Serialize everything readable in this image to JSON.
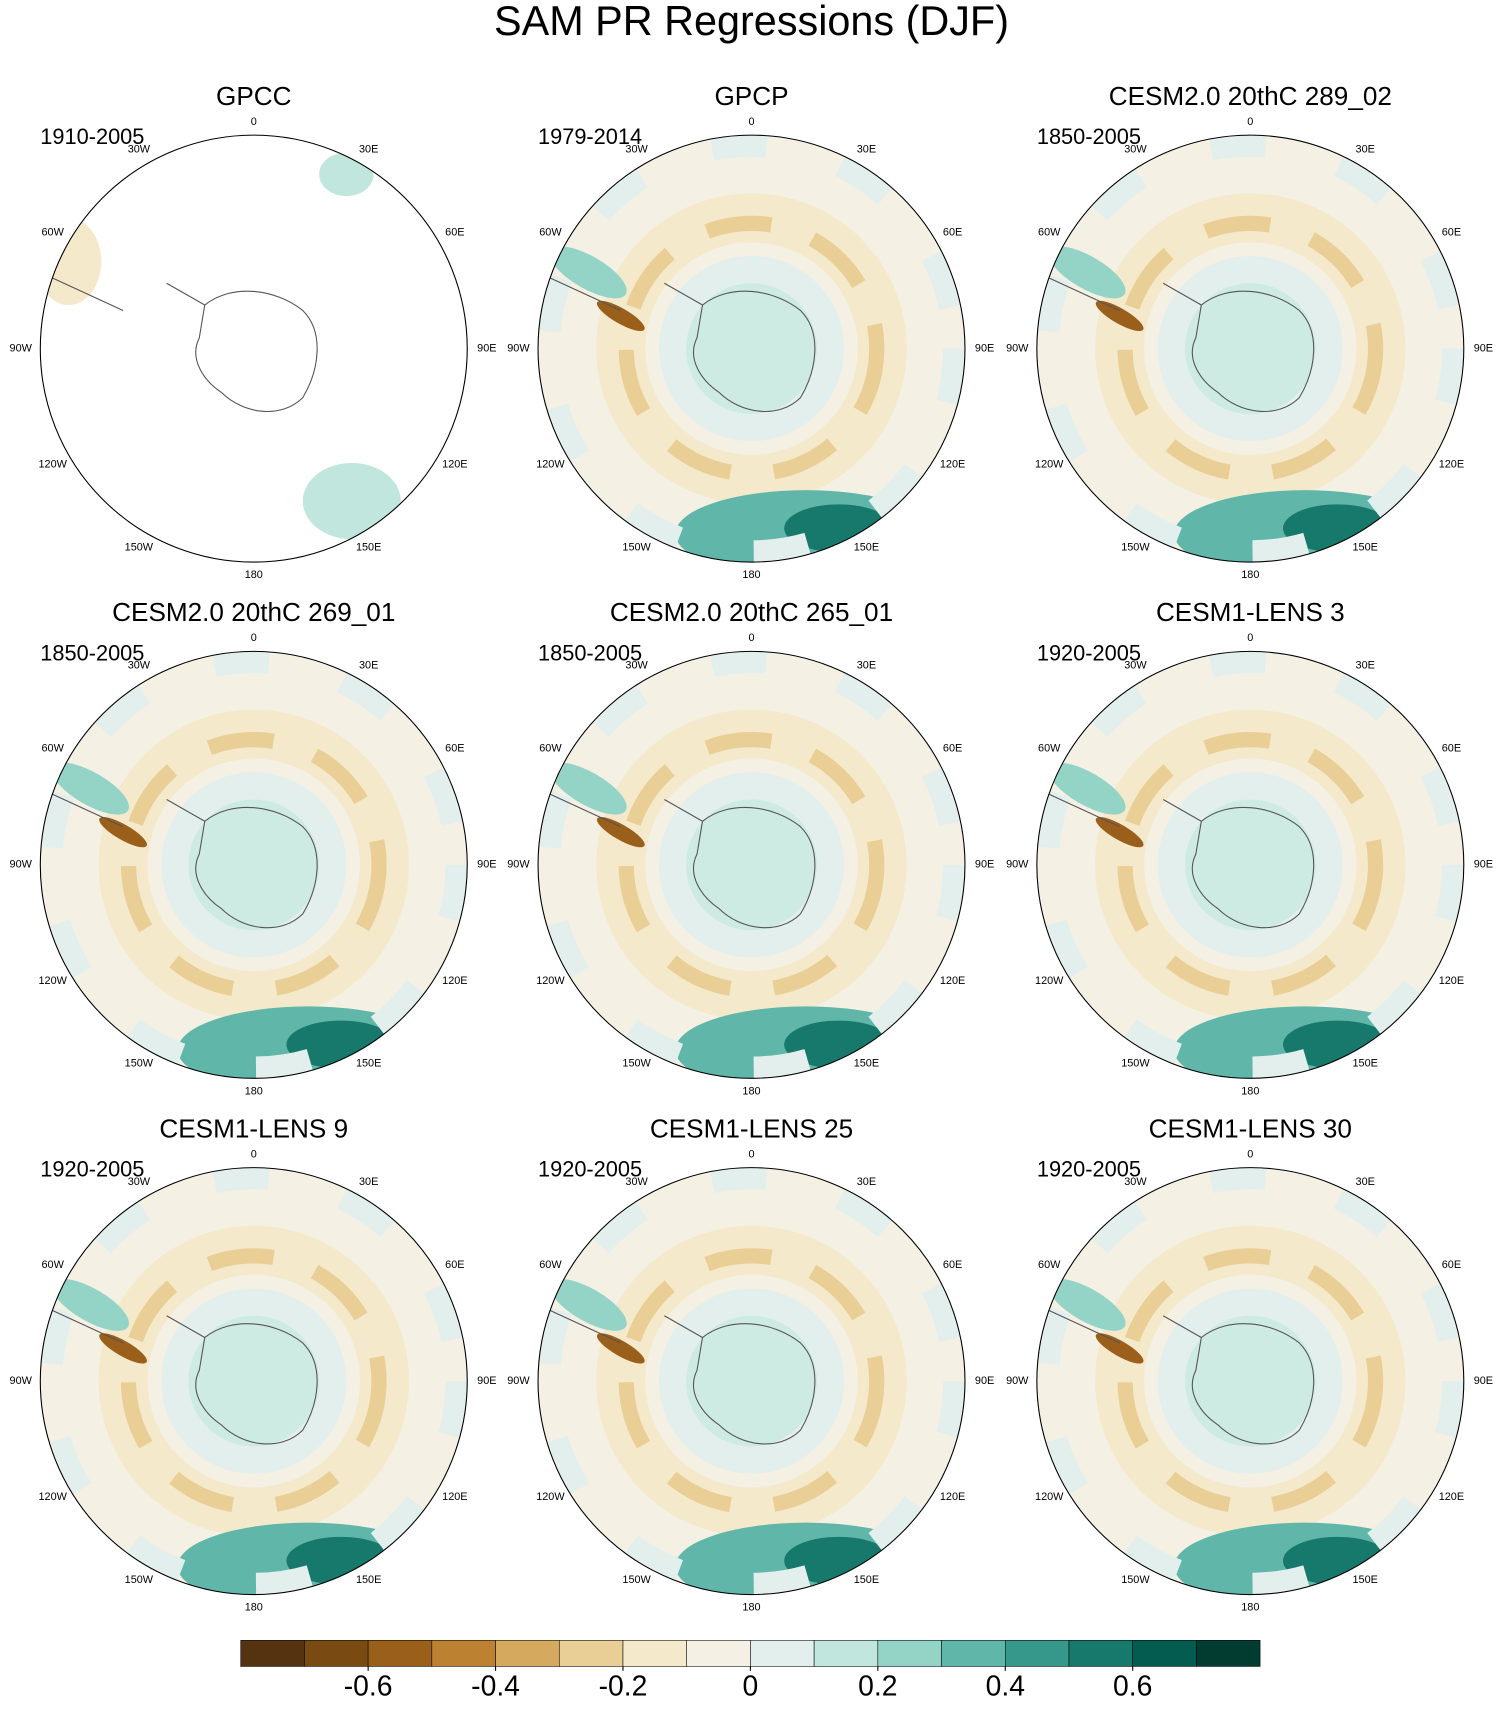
{
  "title": "SAM PR Regressions (DJF)",
  "panels": [
    {
      "title": "GPCC",
      "period": "1910-2005"
    },
    {
      "title": "GPCP",
      "period": "1979-2014"
    },
    {
      "title": "CESM2.0 20thC 289_02",
      "period": "1850-2005"
    },
    {
      "title": "CESM2.0 20thC 269_01",
      "period": "1850-2005"
    },
    {
      "title": "CESM2.0 20thC 265_01",
      "period": "1850-2005"
    },
    {
      "title": "CESM1-LENS 3",
      "period": "1920-2005"
    },
    {
      "title": "CESM1-LENS 9",
      "period": "1920-2005"
    },
    {
      "title": "CESM1-LENS 25",
      "period": "1920-2005"
    },
    {
      "title": "CESM1-LENS 30",
      "period": "1920-2005"
    }
  ],
  "longitude_labels": [
    "0",
    "30E",
    "60E",
    "90E",
    "120E",
    "150E",
    "180",
    "150W",
    "120W",
    "90W",
    "60W",
    "30W"
  ],
  "colorbar": {
    "range": [
      -0.8,
      0.8
    ],
    "ticks": [
      -0.6,
      -0.4,
      -0.2,
      0,
      0.2,
      0.4,
      0.6
    ],
    "colors": [
      "#553311",
      "#7a4a13",
      "#9b5f1c",
      "#bd8132",
      "#d5aa5f",
      "#e9cf96",
      "#f5e9cc",
      "#f4f0e4",
      "#e2efec",
      "#c0e6de",
      "#93d4c7",
      "#60b7a9",
      "#36978b",
      "#17796c",
      "#045c50",
      "#023c31"
    ]
  }
}
